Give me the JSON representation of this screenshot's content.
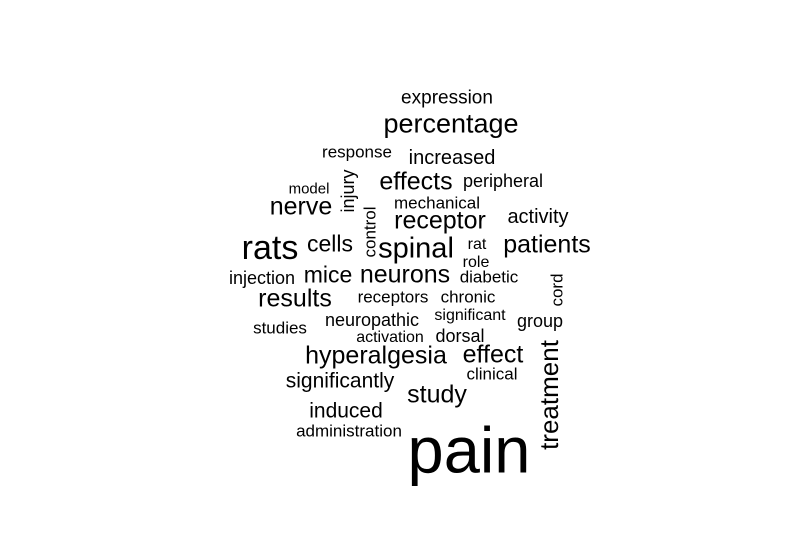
{
  "words": [
    {
      "text": "expression",
      "weight": 3
    },
    {
      "text": "percentage",
      "weight": 5
    },
    {
      "text": "response",
      "weight": 3
    },
    {
      "text": "increased",
      "weight": 4
    },
    {
      "text": "model",
      "weight": 2
    },
    {
      "text": "injury",
      "weight": 3
    },
    {
      "text": "effects",
      "weight": 5
    },
    {
      "text": "peripheral",
      "weight": 3
    },
    {
      "text": "nerve",
      "weight": 5
    },
    {
      "text": "control",
      "weight": 3
    },
    {
      "text": "mechanical",
      "weight": 3
    },
    {
      "text": "receptor",
      "weight": 5
    },
    {
      "text": "activity",
      "weight": 4
    },
    {
      "text": "rats",
      "weight": 7
    },
    {
      "text": "cells",
      "weight": 4
    },
    {
      "text": "spinal",
      "weight": 6
    },
    {
      "text": "rat",
      "weight": 2
    },
    {
      "text": "patients",
      "weight": 5
    },
    {
      "text": "role",
      "weight": 2
    },
    {
      "text": "injection",
      "weight": 3
    },
    {
      "text": "mice",
      "weight": 4
    },
    {
      "text": "neurons",
      "weight": 5
    },
    {
      "text": "diabetic",
      "weight": 3
    },
    {
      "text": "cord",
      "weight": 3
    },
    {
      "text": "results",
      "weight": 5
    },
    {
      "text": "receptors",
      "weight": 3
    },
    {
      "text": "chronic",
      "weight": 3
    },
    {
      "text": "significant",
      "weight": 3
    },
    {
      "text": "group",
      "weight": 3
    },
    {
      "text": "studies",
      "weight": 3
    },
    {
      "text": "neuropathic",
      "weight": 3
    },
    {
      "text": "activation",
      "weight": 3
    },
    {
      "text": "dorsal",
      "weight": 3
    },
    {
      "text": "hyperalgesia",
      "weight": 5
    },
    {
      "text": "effect",
      "weight": 5
    },
    {
      "text": "treatment",
      "weight": 6
    },
    {
      "text": "significantly",
      "weight": 4
    },
    {
      "text": "clinical",
      "weight": 3
    },
    {
      "text": "study",
      "weight": 5
    },
    {
      "text": "induced",
      "weight": 4
    },
    {
      "text": "administration",
      "weight": 3
    },
    {
      "text": "pain",
      "weight": 10
    }
  ]
}
